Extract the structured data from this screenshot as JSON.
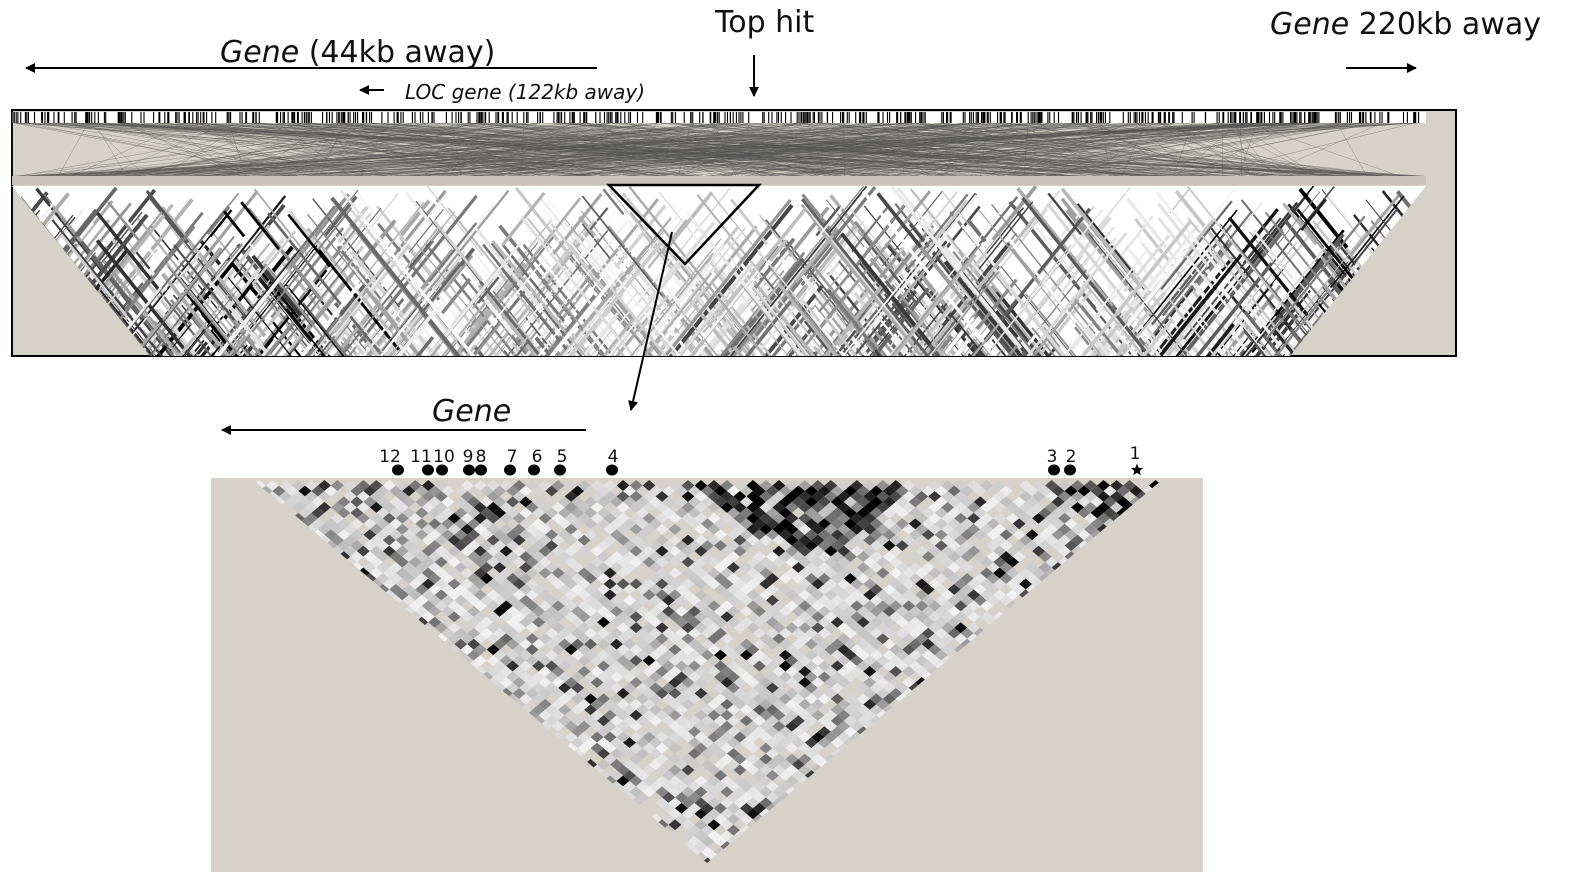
{
  "top_label": "Top hit",
  "gene_left": {
    "name": "Gene",
    "detail": " (44kb away)"
  },
  "loc_gene": {
    "name": "LOC gene",
    "detail": " (122kb away)"
  },
  "gene_right": {
    "name": "Gene",
    "detail": " 220kb away"
  },
  "zoom_gene_label": "Gene",
  "snp_markers": [
    {
      "label": "12",
      "marker": "dot"
    },
    {
      "label": "11",
      "marker": "dot"
    },
    {
      "label": "10",
      "marker": "dot"
    },
    {
      "label": "9",
      "marker": "dot"
    },
    {
      "label": "8",
      "marker": "dot"
    },
    {
      "label": "7",
      "marker": "dot"
    },
    {
      "label": "6",
      "marker": "dot"
    },
    {
      "label": "5",
      "marker": "dot"
    },
    {
      "label": "4",
      "marker": "dot"
    },
    {
      "label": "3",
      "marker": "dot"
    },
    {
      "label": "2",
      "marker": "dot"
    },
    {
      "label": "1",
      "marker": "star"
    }
  ],
  "colors": {
    "panel_background": "#d6d2ca",
    "ld_strong": "#000000",
    "ld_weak": "#ffffff",
    "line": "#000000"
  }
}
